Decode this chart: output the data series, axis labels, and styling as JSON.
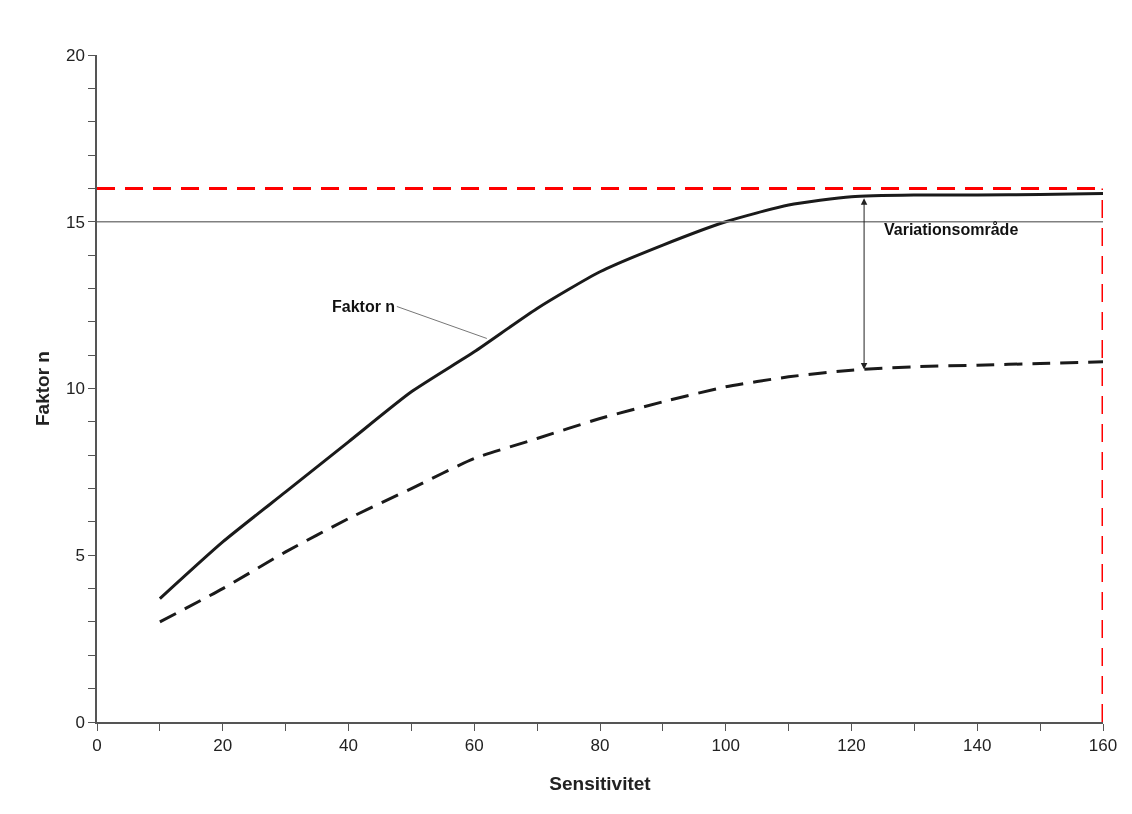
{
  "chart_data": {
    "type": "line",
    "xlabel": "Sensitivitet",
    "ylabel": "Faktor n",
    "grid": false,
    "marker": "none",
    "xlim": [
      0,
      160
    ],
    "xticks": [
      0,
      {
        "value": 10,
        "label": null
      },
      20,
      {
        "value": 30,
        "label": null
      },
      40,
      {
        "value": 50,
        "label": null
      },
      60,
      {
        "value": 70,
        "label": null
      },
      80,
      {
        "value": 90,
        "label": null
      },
      100,
      {
        "value": 110,
        "label": null
      },
      120,
      {
        "value": 130,
        "label": null
      },
      140,
      {
        "value": 150,
        "label": null
      },
      160
    ],
    "ylim": [
      0,
      20
    ],
    "yticks": [
      0,
      {
        "value": 1,
        "label": null
      },
      {
        "value": 2,
        "label": null
      },
      {
        "value": 3,
        "label": null
      },
      {
        "value": 4,
        "label": null
      },
      5,
      {
        "value": 6,
        "label": null
      },
      {
        "value": 7,
        "label": null
      },
      {
        "value": 8,
        "label": null
      },
      {
        "value": 9,
        "label": null
      },
      10,
      {
        "value": 11,
        "label": null
      },
      {
        "value": 12,
        "label": null
      },
      {
        "value": 13,
        "label": null
      },
      {
        "value": 14,
        "label": null
      },
      15,
      {
        "value": 16,
        "label": null
      },
      {
        "value": 17,
        "label": null
      },
      {
        "value": 18,
        "label": null
      },
      {
        "value": 19,
        "label": null
      },
      20
    ],
    "x": [
      10,
      20,
      30,
      40,
      50,
      60,
      70,
      80,
      90,
      100,
      110,
      120,
      130,
      140,
      150,
      160
    ],
    "series": [
      {
        "color": "#1a1a1a",
        "line_style": "solid",
        "values": [
          3.7,
          5.4,
          6.9,
          8.4,
          9.9,
          11.1,
          12.4,
          13.5,
          14.3,
          15.0,
          15.5,
          15.75,
          15.8,
          15.8,
          15.82,
          15.85
        ]
      },
      {
        "color": "#1a1a1a",
        "line_style": "dashed",
        "values": [
          3.0,
          4.0,
          5.1,
          6.1,
          7.0,
          7.9,
          8.5,
          9.1,
          9.6,
          10.05,
          10.35,
          10.55,
          10.65,
          10.7,
          10.75,
          10.8
        ]
      }
    ],
    "ref_lines": [
      {
        "axis": "y",
        "value": 15,
        "color": "#808080",
        "line_style": "solid"
      },
      {
        "axis": "y",
        "value": 16,
        "color": "#ff0000",
        "line_style": "dashed"
      },
      {
        "axis": "x",
        "value": 160,
        "color": "#ff0000",
        "line_style": "dashed"
      }
    ],
    "annotations": [
      {
        "text": "Faktor n",
        "x": 62,
        "y": 11.5
      },
      {
        "text": "Variationsområde",
        "x": 122,
        "y": 15.75
      }
    ]
  }
}
